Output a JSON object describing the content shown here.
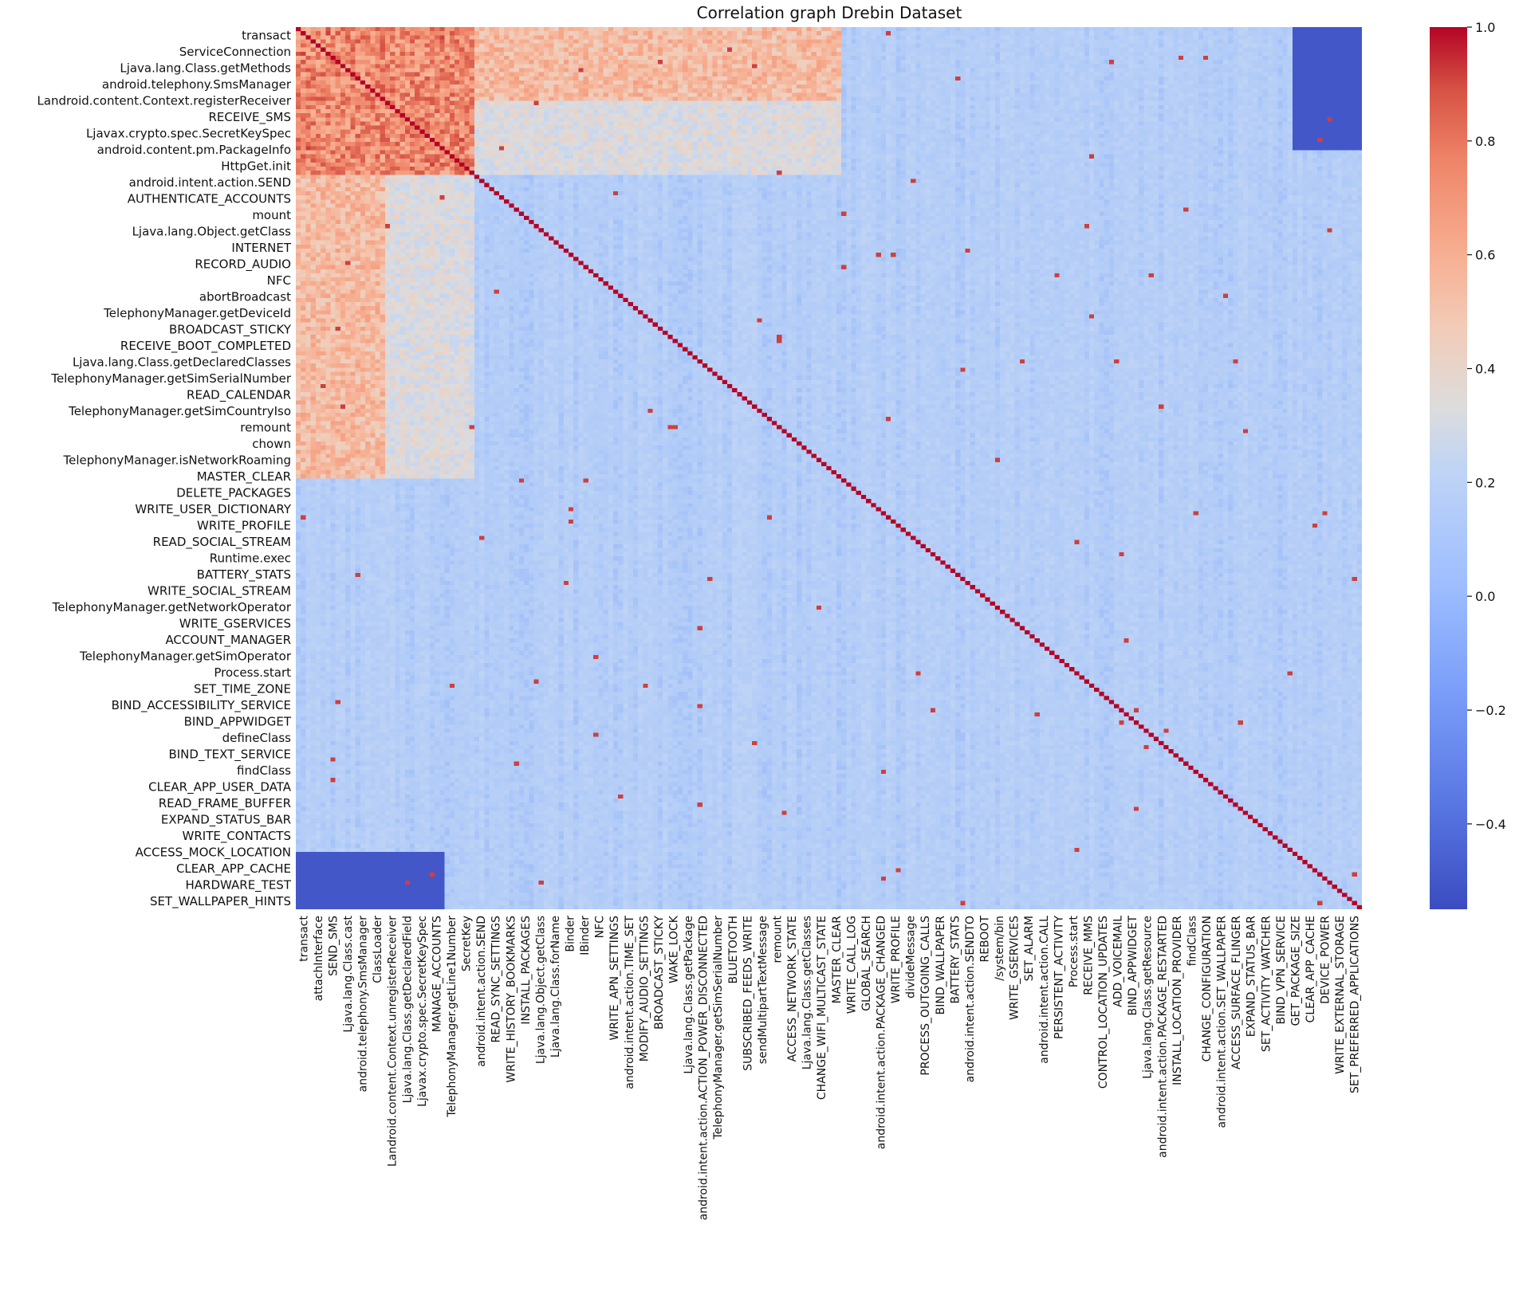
{
  "chart_data": {
    "type": "heatmap",
    "title": "Correlation graph Drebin Dataset",
    "xlabel": "",
    "ylabel": "",
    "colormap": "coolwarm",
    "colors": {
      "low": "#3b4cc0",
      "mid": "#dddcdc",
      "high": "#b40426"
    },
    "value_range": [
      -0.55,
      1.0
    ],
    "matrix_size": 215,
    "row_labels": [
      "transact",
      "ServiceConnection",
      "Ljava.lang.Class.getMethods",
      "android.telephony.SmsManager",
      "Landroid.content.Context.registerReceiver",
      "RECEIVE_SMS",
      "Ljavax.crypto.spec.SecretKeySpec",
      "android.content.pm.PackageInfo",
      "HttpGet.init",
      "android.intent.action.SEND",
      "AUTHENTICATE_ACCOUNTS",
      "mount",
      "Ljava.lang.Object.getClass",
      "INTERNET",
      "RECORD_AUDIO",
      "NFC",
      "abortBroadcast",
      "TelephonyManager.getDeviceId",
      "BROADCAST_STICKY",
      "RECEIVE_BOOT_COMPLETED",
      "Ljava.lang.Class.getDeclaredClasses",
      "TelephonyManager.getSimSerialNumber",
      "READ_CALENDAR",
      "TelephonyManager.getSimCountryIso",
      "remount",
      "chown",
      "TelephonyManager.isNetworkRoaming",
      "MASTER_CLEAR",
      "DELETE_PACKAGES",
      "WRITE_USER_DICTIONARY",
      "WRITE_PROFILE",
      "READ_SOCIAL_STREAM",
      "Runtime.exec",
      "BATTERY_STATS",
      "WRITE_SOCIAL_STREAM",
      "TelephonyManager.getNetworkOperator",
      "WRITE_GSERVICES",
      "ACCOUNT_MANAGER",
      "TelephonyManager.getSimOperator",
      "Process.start",
      "SET_TIME_ZONE",
      "BIND_ACCESSIBILITY_SERVICE",
      "BIND_APPWIDGET",
      "defineClass",
      "BIND_TEXT_SERVICE",
      "findClass",
      "CLEAR_APP_USER_DATA",
      "READ_FRAME_BUFFER",
      "EXPAND_STATUS_BAR",
      "WRITE_CONTACTS",
      "ACCESS_MOCK_LOCATION",
      "CLEAR_APP_CACHE",
      "HARDWARE_TEST",
      "SET_WALLPAPER_HINTS"
    ],
    "col_labels": [
      "transact",
      "attachInterface",
      "SEND_SMS",
      "Ljava.lang.Class.cast",
      "android.telephony.SmsManager",
      "ClassLoader",
      "Landroid.content.Context.unregisterReceiver",
      "Ljava.lang.Class.getDeclaredField",
      "Ljavax.crypto.spec.SecretKeySpec",
      "MANAGE_ACCOUNTS",
      "TelephonyManager.getLine1Number",
      "SecretKey",
      "android.intent.action.SEND",
      "READ_SYNC_SETTINGS",
      "WRITE_HISTORY_BOOKMARKS",
      "INSTALL_PACKAGES",
      "Ljava.lang.Object.getClass",
      "Ljava.lang.Class.forName",
      "Binder",
      "IBinder",
      "NFC",
      "WRITE_APN_SETTINGS",
      "android.intent.action.TIME_SET",
      "MODIFY_AUDIO_SETTINGS",
      "BROADCAST_STICKY",
      "WAKE_LOCK",
      "Ljava.lang.Class.getPackage",
      "android.intent.action.ACTION_POWER_DISCONNECTED",
      "TelephonyManager.getSimSerialNumber",
      "BLUETOOTH",
      "SUBSCRIBED_FEEDS_WRITE",
      "sendMultipartTextMessage",
      "remount",
      "ACCESS_NETWORK_STATE",
      "Ljava.lang.Class.getClasses",
      "CHANGE_WIFI_MULTICAST_STATE",
      "MASTER_CLEAR",
      "WRITE_CALL_LOG",
      "GLOBAL_SEARCH",
      "android.intent.action.PACKAGE_CHANGED",
      "WRITE_PROFILE",
      "divideMessage",
      "PROCESS_OUTGOING_CALLS",
      "BIND_WALLPAPER",
      "BATTERY_STATS",
      "android.intent.action.SENDTO",
      "REBOOT",
      "/system/bin",
      "WRITE_GSERVICES",
      "SET_ALARM",
      "android.intent.action.CALL",
      "PERSISTENT_ACTIVITY",
      "Process.start",
      "RECEIVE_MMS",
      "CONTROL_LOCATION_UPDATES",
      "ADD_VOICEMAIL",
      "BIND_APPWIDGET",
      "Ljava.lang.Class.getResource",
      "android.intent.action.PACKAGE_RESTARTED",
      "INSTALL_LOCATION_PROVIDER",
      "findClass",
      "CHANGE_CONFIGURATION",
      "android.intent.action.SET_WALLPAPER",
      "ACCESS_SURFACE_FLINGER",
      "EXPAND_STATUS_BAR",
      "SET_ACTIVITY_WATCHER",
      "BIND_VPN_SERVICE",
      "GET_PACKAGE_SIZE",
      "CLEAR_APP_CACHE",
      "DEVICE_POWER",
      "WRITE_EXTERNAL_STORAGE",
      "SET_PREFERRED_APPLICATIONS"
    ],
    "colorbar_ticks": [
      1.0,
      0.8,
      0.6,
      0.4,
      0.2,
      0.0,
      -0.2,
      -0.4
    ],
    "grid": false,
    "legend": "colorbar-right"
  }
}
